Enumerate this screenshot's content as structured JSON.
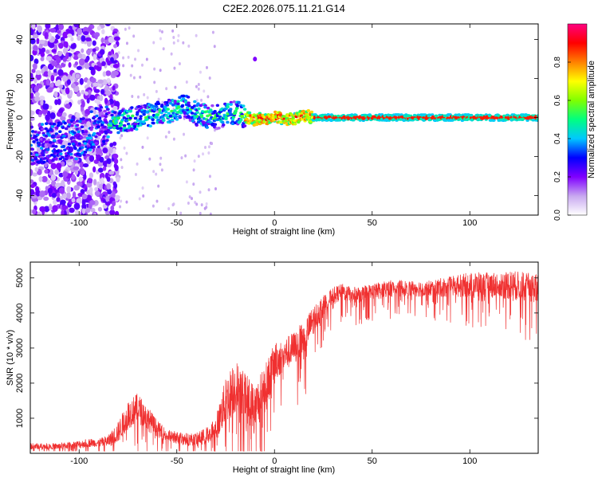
{
  "chart_data": [
    {
      "type": "heatmap",
      "title": "C2E2.2026.075.11.21.G14",
      "xlabel": "Height of straight line (km)",
      "ylabel": "Frequency (Hz)",
      "xlim": [
        -125,
        135
      ],
      "ylim": [
        -50,
        48
      ],
      "xticks": [
        -100,
        -50,
        0,
        50,
        100
      ],
      "yticks": [
        -40,
        -20,
        0,
        20,
        40
      ],
      "colorbar": {
        "label": "Normalized spectral amplitude",
        "range": [
          0.0,
          1.0
        ],
        "ticks": [
          "0.0",
          "0.2",
          "0.4",
          "0.6",
          "0.8"
        ],
        "colors": [
          "#ffffff",
          "#c8a8f0",
          "#8000ff",
          "#0000ff",
          "#00c8ff",
          "#00ff80",
          "#80ff00",
          "#ffff00",
          "#ff8000",
          "#ff0000",
          "#ff0080"
        ]
      },
      "ridge": [
        {
          "x": -125,
          "f": -14
        },
        {
          "x": -110,
          "f": -12
        },
        {
          "x": -100,
          "f": -11
        },
        {
          "x": -90,
          "f": -4
        },
        {
          "x": -80,
          "f": -2
        },
        {
          "x": -70,
          "f": 0
        },
        {
          "x": -60,
          "f": 2
        },
        {
          "x": -50,
          "f": 4
        },
        {
          "x": -45,
          "f": 6
        },
        {
          "x": -40,
          "f": 2
        },
        {
          "x": -30,
          "f": 0
        },
        {
          "x": -20,
          "f": 3
        },
        {
          "x": -15,
          "f": 0
        },
        {
          "x": -10,
          "f": -1
        },
        {
          "x": 0,
          "f": 0
        },
        {
          "x": 10,
          "f": -1
        },
        {
          "x": 15,
          "f": 1
        },
        {
          "x": 20,
          "f": 0
        },
        {
          "x": 50,
          "f": 0
        },
        {
          "x": 100,
          "f": 0
        },
        {
          "x": 135,
          "f": 0
        }
      ]
    },
    {
      "type": "line",
      "xlabel": "Height of straight line (km)",
      "ylabel": "SNR (10 * v/v)",
      "xlim": [
        -125,
        135
      ],
      "ylim": [
        0,
        5450
      ],
      "xticks": [
        -100,
        -50,
        0,
        50,
        100
      ],
      "yticks": [
        1000,
        2000,
        3000,
        4000,
        5000
      ],
      "series": [
        {
          "name": "SNR",
          "color": "#f03030",
          "x": [
            -125,
            -110,
            -100,
            -95,
            -90,
            -85,
            -80,
            -75,
            -70,
            -65,
            -60,
            -55,
            -50,
            -45,
            -40,
            -35,
            -30,
            -25,
            -20,
            -15,
            -10,
            -5,
            0,
            5,
            10,
            15,
            20,
            25,
            30,
            35,
            40,
            50,
            60,
            70,
            80,
            90,
            100,
            110,
            120,
            135
          ],
          "values": [
            200,
            200,
            250,
            300,
            300,
            350,
            600,
            1100,
            1300,
            1000,
            700,
            500,
            450,
            400,
            400,
            500,
            700,
            1500,
            1900,
            1600,
            1300,
            1800,
            2600,
            2800,
            3000,
            3300,
            3800,
            4200,
            4500,
            4600,
            4500,
            4600,
            4700,
            4700,
            4700,
            4750,
            4800,
            4800,
            4800,
            4700
          ],
          "spread": [
            150,
            150,
            200,
            200,
            200,
            300,
            500,
            700,
            700,
            600,
            400,
            300,
            300,
            300,
            300,
            400,
            600,
            1100,
            1300,
            1200,
            1100,
            1200,
            900,
            800,
            800,
            800,
            700,
            500,
            400,
            400,
            400,
            400,
            400,
            400,
            400,
            500,
            600,
            600,
            700,
            700
          ]
        }
      ]
    }
  ]
}
